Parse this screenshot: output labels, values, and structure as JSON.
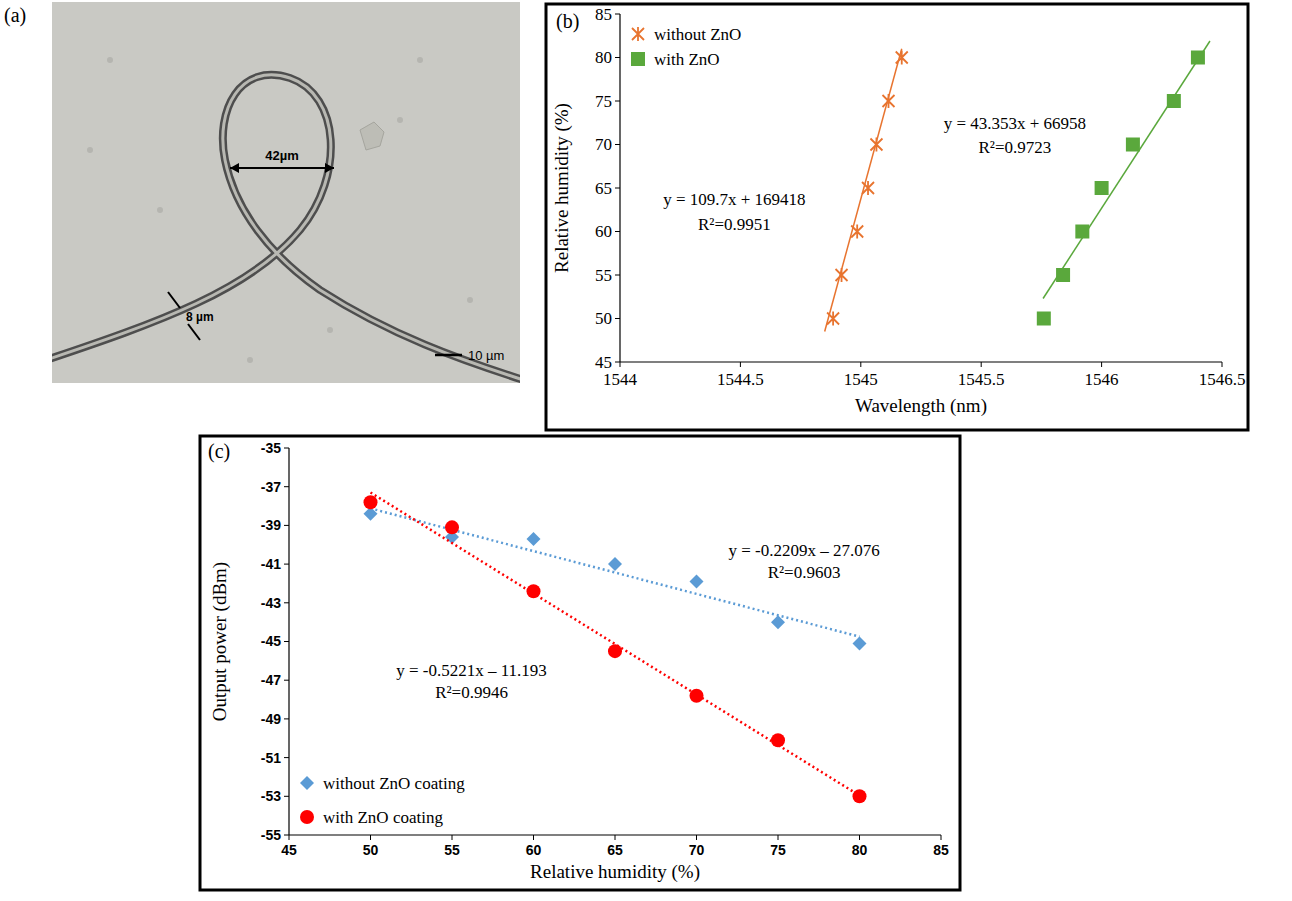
{
  "image_panel": {
    "panel_label": "(a)",
    "annotations": [
      "42µm",
      "8 µm",
      "10 µm"
    ]
  },
  "chart_data": [
    {
      "type": "scatter",
      "panel_label": "(b)",
      "x_label": "Wavelength (nm)",
      "y_label": "Relative humidity (%)",
      "xlim": [
        1544,
        1546.5
      ],
      "xticks": [
        1544,
        1544.5,
        1545,
        1545.5,
        1546,
        1546.5
      ],
      "ylim": [
        45,
        85
      ],
      "yticks": [
        45,
        50,
        55,
        60,
        65,
        70,
        75,
        80,
        85
      ],
      "grid": false,
      "legend": "upper left",
      "series": [
        {
          "name": "without ZnO",
          "color": "#e8742f",
          "marker": "asterisk",
          "line_style": "solid",
          "x": [
            1544.885,
            1544.92,
            1544.985,
            1545.03,
            1545.065,
            1545.115,
            1545.17
          ],
          "values": [
            50,
            55,
            60,
            65,
            70,
            75,
            80
          ],
          "trend": {
            "x": [
              1544.85,
              1545.17
            ],
            "values": [
              48.5,
              81
            ]
          },
          "annotations": [
            "y = 109.7x + 169418",
            "R²=0.9951"
          ]
        },
        {
          "name": "with ZnO",
          "color": "#5aa83c",
          "marker": "square",
          "line_style": "solid",
          "x": [
            1545.76,
            1545.84,
            1545.92,
            1546.0,
            1546.13,
            1546.3,
            1546.4
          ],
          "values": [
            50,
            55,
            60,
            65,
            70,
            75,
            80
          ],
          "trend": {
            "x": [
              1545.757,
              1546.45
            ],
            "values": [
              52.3,
              81.9
            ]
          },
          "annotations": [
            "y = 43.353x + 66958",
            "R²=0.9723"
          ]
        }
      ]
    },
    {
      "type": "scatter",
      "panel_label": "(c)",
      "x_label": "Relative humidity (%)",
      "y_label": "Output power (dBm)",
      "xlim": [
        45,
        85
      ],
      "xticks": [
        45,
        50,
        55,
        60,
        65,
        70,
        75,
        80,
        85
      ],
      "ylim": [
        -55,
        -35
      ],
      "yticks": [
        -35,
        -37,
        -39,
        -41,
        -43,
        -45,
        -47,
        -49,
        -51,
        -53,
        -55
      ],
      "grid": false,
      "legend": "lower left",
      "x": [
        50,
        55,
        60,
        65,
        70,
        75,
        80
      ],
      "series": [
        {
          "name": "without ZnO coating",
          "color": "#5b9bd5",
          "marker": "diamond",
          "line_style": "dotted",
          "values": [
            -38.4,
            -39.6,
            -39.7,
            -41.0,
            -41.9,
            -44.0,
            -45.1
          ],
          "trend": {
            "x": [
              50,
              80
            ],
            "values": [
              -38.12,
              -44.75
            ]
          },
          "annotations": [
            "y = -0.2209x – 27.076",
            "R²=0.9603"
          ]
        },
        {
          "name": "with ZnO coating",
          "color": "#ff0000",
          "marker": "circle",
          "line_style": "dotted",
          "values": [
            -37.8,
            -39.1,
            -42.4,
            -45.5,
            -47.8,
            -50.1,
            -53.0
          ],
          "trend": {
            "x": [
              50,
              80
            ],
            "values": [
              -37.3,
              -52.96
            ]
          },
          "annotations": [
            "y = -0.5221x – 11.193",
            "R²=0.9946"
          ]
        }
      ]
    }
  ]
}
